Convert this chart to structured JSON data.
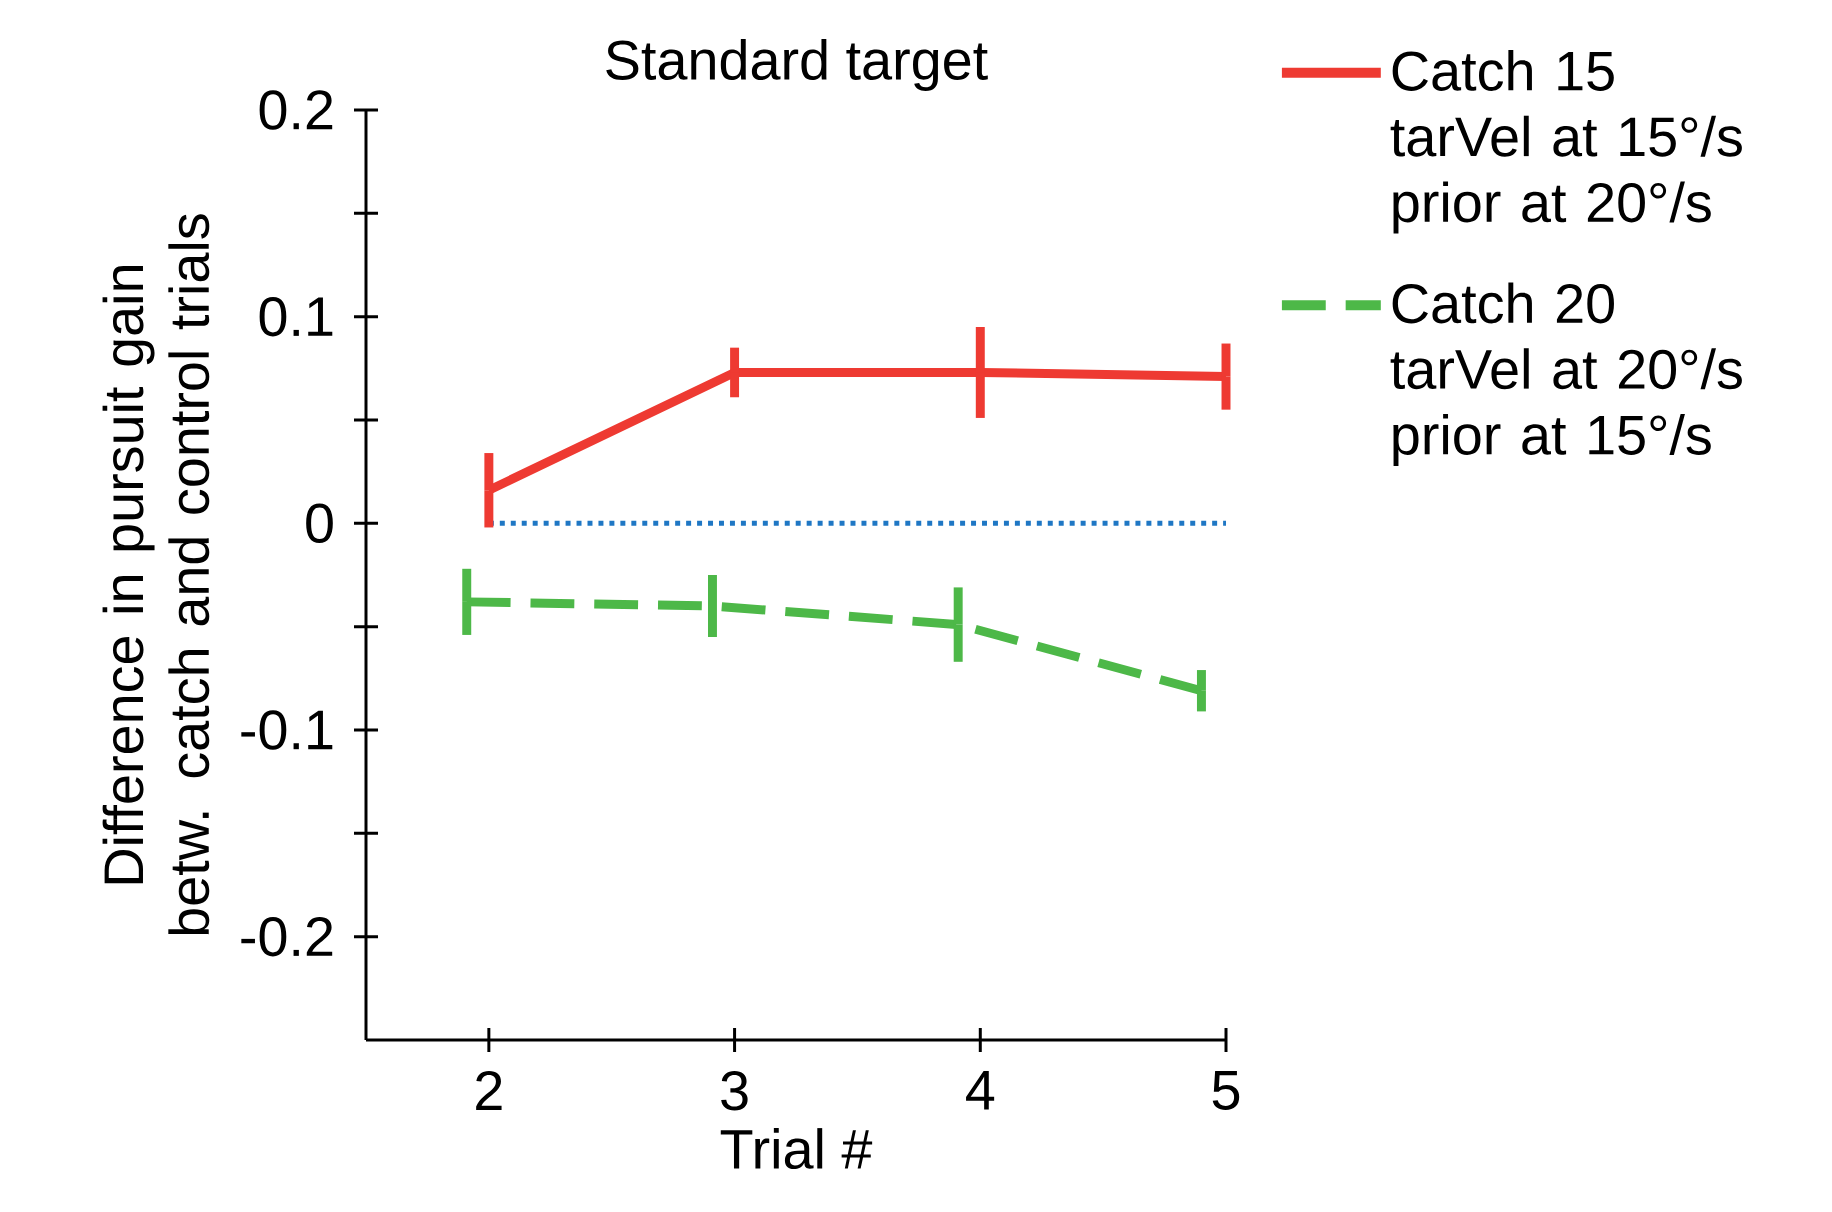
{
  "chart_data": {
    "type": "line",
    "title": "Standard target",
    "xlabel": "Trial #",
    "ylabel": "Difference in pursuit gain betw. catch and control trials",
    "xlim": [
      1.5,
      5
    ],
    "ylim": [
      -0.25,
      0.2
    ],
    "xticks": [
      2,
      3,
      4,
      5
    ],
    "yticks": [
      -0.2,
      {
        "value": -0.15,
        "label": null
      },
      -0.1,
      {
        "value": -0.05,
        "label": null
      },
      0,
      {
        "value": 0.05,
        "label": null
      },
      0.1,
      {
        "value": 0.15,
        "label": null
      },
      0.2
    ],
    "legend": "top right",
    "ref_lines": [
      {
        "axis": "y",
        "value": 0,
        "color": "#1f77c4",
        "line_style": "dotted"
      }
    ],
    "series": [
      {
        "name": "Catch 15 tarVel at 15°/s prior at 20°/s",
        "color": "#ee3a32",
        "line_style": "solid",
        "x": [
          2,
          3,
          4,
          5
        ],
        "values": [
          0.016,
          0.073,
          0.073,
          0.071
        ],
        "errors": [
          0.018,
          0.012,
          0.022,
          0.016
        ]
      },
      {
        "name": "Catch 20 tarVel at 20°/s prior at 15°/s",
        "color": "#4db848",
        "line_style": "dashed",
        "x": [
          1.91,
          2.91,
          3.91,
          4.9
        ],
        "values": [
          -0.038,
          -0.04,
          -0.049,
          -0.081
        ],
        "errors": [
          0.016,
          0.015,
          0.018,
          0.01
        ]
      }
    ]
  }
}
